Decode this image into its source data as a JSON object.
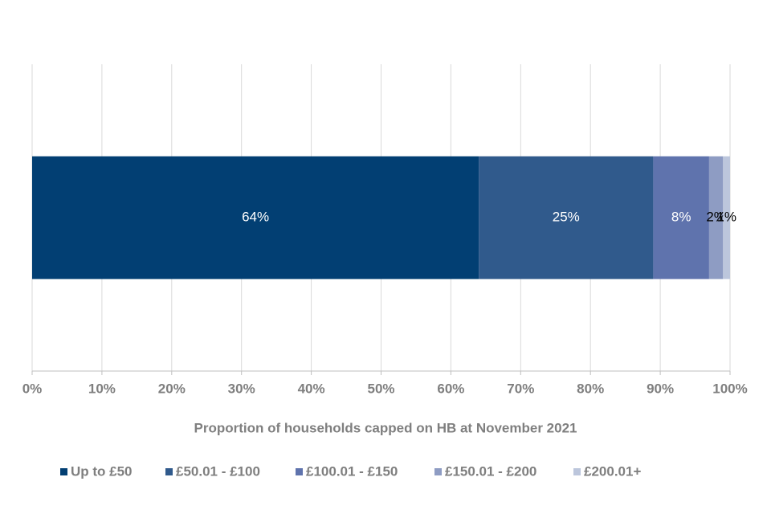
{
  "chart_data": {
    "type": "stacked-bar-horizontal",
    "x_label": "Proportion of households capped on HB at November 2021",
    "categories": [
      null
    ],
    "series": [
      {
        "name": "Up to £50",
        "color": "#023f73",
        "values": [
          64
        ],
        "value_labels": [
          "64%"
        ]
      },
      {
        "name": "£50.01 - £100",
        "color": "#305a8c",
        "values": [
          25
        ],
        "value_labels": [
          "25%"
        ]
      },
      {
        "name": "£100.01 - £150",
        "color": "#5f73ad",
        "values": [
          8
        ],
        "value_labels": [
          "8%"
        ]
      },
      {
        "name": "£150.01 - £200",
        "color": "#8e9cc3",
        "values": [
          2
        ],
        "value_labels": [
          "2%"
        ]
      },
      {
        "name": "£200.01+",
        "color": "#bcc6dc",
        "values": [
          1
        ],
        "value_labels": [
          "1%"
        ]
      }
    ],
    "xlim": [
      0,
      100
    ],
    "xticks": [
      {
        "value": 0,
        "label": "0%"
      },
      {
        "value": 10,
        "label": "10%"
      },
      {
        "value": 20,
        "label": "20%"
      },
      {
        "value": 30,
        "label": "30%"
      },
      {
        "value": 40,
        "label": "40%"
      },
      {
        "value": 50,
        "label": "50%"
      },
      {
        "value": 60,
        "label": "60%"
      },
      {
        "value": 70,
        "label": "70%"
      },
      {
        "value": 80,
        "label": "80%"
      },
      {
        "value": 90,
        "label": "90%"
      },
      {
        "value": 100,
        "label": "100%"
      }
    ],
    "grid": true,
    "legend": "bottom"
  }
}
